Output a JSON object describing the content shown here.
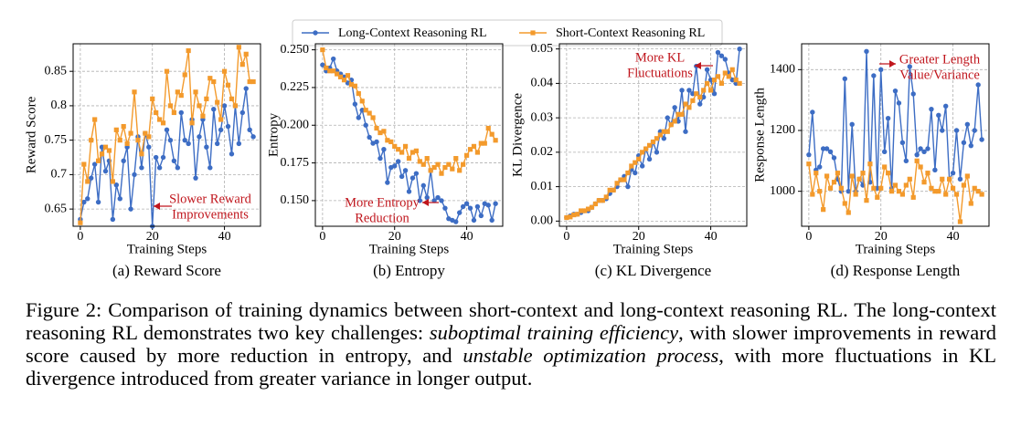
{
  "chart_data": [
    {
      "type": "line",
      "title": "(a) Reward Score",
      "xlabel": "Training Steps",
      "ylabel": "Reward Score",
      "x": [
        0,
        1,
        2,
        3,
        4,
        5,
        6,
        7,
        8,
        9,
        10,
        11,
        12,
        13,
        14,
        15,
        16,
        17,
        18,
        19,
        20,
        21,
        22,
        23,
        24,
        25,
        26,
        27,
        28,
        29,
        30,
        31,
        32,
        33,
        34,
        35,
        36,
        37,
        38,
        39,
        40,
        41,
        42,
        43,
        44,
        45,
        46,
        47,
        48
      ],
      "xlim": [
        -2,
        50
      ],
      "xticks": [
        0,
        20,
        40
      ],
      "ylim": [
        0.625,
        0.89
      ],
      "yticks": [
        0.65,
        0.7,
        0.75,
        0.8,
        0.85
      ],
      "grid": true,
      "annotation": [
        "Slower Reward",
        "Improvements"
      ],
      "series": [
        {
          "name": "Long-Context Reasoning RL",
          "color": "#3d6dc4",
          "marker": "circle",
          "values": [
            0.635,
            0.66,
            0.665,
            0.695,
            0.715,
            0.66,
            0.74,
            0.705,
            0.72,
            0.635,
            0.685,
            0.665,
            0.72,
            0.74,
            0.65,
            0.7,
            0.755,
            0.71,
            0.76,
            0.74,
            0.625,
            0.725,
            0.71,
            0.725,
            0.765,
            0.75,
            0.72,
            0.71,
            0.79,
            0.75,
            0.745,
            0.78,
            0.695,
            0.755,
            0.78,
            0.74,
            0.71,
            0.795,
            0.745,
            0.765,
            0.8,
            0.77,
            0.73,
            0.8,
            0.745,
            0.79,
            0.825,
            0.765,
            0.755
          ]
        },
        {
          "name": "Short-Context Reasoning RL",
          "color": "#f39a2c",
          "marker": "square",
          "values": [
            0.63,
            0.715,
            0.69,
            0.75,
            0.78,
            0.72,
            0.73,
            0.74,
            0.735,
            0.69,
            0.765,
            0.75,
            0.77,
            0.745,
            0.76,
            0.82,
            0.75,
            0.73,
            0.76,
            0.755,
            0.81,
            0.79,
            0.78,
            0.775,
            0.85,
            0.8,
            0.79,
            0.82,
            0.815,
            0.845,
            0.88,
            0.775,
            0.82,
            0.8,
            0.785,
            0.81,
            0.84,
            0.835,
            0.805,
            0.78,
            0.85,
            0.83,
            0.81,
            0.8,
            0.885,
            0.86,
            0.875,
            0.835,
            0.835
          ]
        }
      ]
    },
    {
      "type": "line",
      "title": "(b) Entropy",
      "xlabel": "Training Steps",
      "ylabel": "Entropy",
      "x": [
        0,
        1,
        2,
        3,
        4,
        5,
        6,
        7,
        8,
        9,
        10,
        11,
        12,
        13,
        14,
        15,
        16,
        17,
        18,
        19,
        20,
        21,
        22,
        23,
        24,
        25,
        26,
        27,
        28,
        29,
        30,
        31,
        32,
        33,
        34,
        35,
        36,
        37,
        38,
        39,
        40,
        41,
        42,
        43,
        44,
        45,
        46,
        47,
        48
      ],
      "xlim": [
        -2,
        50
      ],
      "xticks": [
        0,
        20,
        40
      ],
      "ylim": [
        0.133,
        0.254
      ],
      "yticks": [
        {
          "value": 0.15,
          "label": "0.150"
        },
        {
          "value": 0.175,
          "label": "0.175"
        },
        {
          "value": 0.2,
          "label": "0.200"
        },
        {
          "value": 0.225,
          "label": "0.225"
        },
        {
          "value": 0.25,
          "label": "0.250"
        }
      ],
      "grid": true,
      "annotation": [
        "More Entropy",
        "Reduction"
      ],
      "series": [
        {
          "color": "#3d6dc4",
          "marker": "circle",
          "values": [
            0.24,
            0.236,
            0.238,
            0.244,
            0.236,
            0.234,
            0.232,
            0.228,
            0.23,
            0.214,
            0.205,
            0.21,
            0.2,
            0.192,
            0.188,
            0.189,
            0.178,
            0.184,
            0.162,
            0.172,
            0.173,
            0.176,
            0.166,
            0.17,
            0.156,
            0.165,
            0.168,
            0.15,
            0.16,
            0.152,
            0.17,
            0.15,
            0.152,
            0.15,
            0.145,
            0.138,
            0.137,
            0.136,
            0.142,
            0.146,
            0.148,
            0.145,
            0.137,
            0.146,
            0.14,
            0.148,
            0.147,
            0.137,
            0.148
          ]
        },
        {
          "color": "#f39a2c",
          "marker": "square",
          "values": [
            0.25,
            0.238,
            0.236,
            0.236,
            0.234,
            0.232,
            0.23,
            0.233,
            0.227,
            0.226,
            0.221,
            0.216,
            0.21,
            0.208,
            0.205,
            0.198,
            0.195,
            0.196,
            0.19,
            0.189,
            0.186,
            0.184,
            0.182,
            0.186,
            0.178,
            0.182,
            0.183,
            0.176,
            0.174,
            0.178,
            0.17,
            0.172,
            0.174,
            0.168,
            0.172,
            0.174,
            0.171,
            0.178,
            0.17,
            0.174,
            0.18,
            0.184,
            0.186,
            0.182,
            0.188,
            0.188,
            0.198,
            0.194,
            0.19
          ]
        }
      ]
    },
    {
      "type": "line",
      "title": "(c) KL Divergence",
      "xlabel": "Training Steps",
      "ylabel": "KL Divergence",
      "x": [
        0,
        1,
        2,
        3,
        4,
        5,
        6,
        7,
        8,
        9,
        10,
        11,
        12,
        13,
        14,
        15,
        16,
        17,
        18,
        19,
        20,
        21,
        22,
        23,
        24,
        25,
        26,
        27,
        28,
        29,
        30,
        31,
        32,
        33,
        34,
        35,
        36,
        37,
        38,
        39,
        40,
        41,
        42,
        43,
        44,
        45,
        46,
        47,
        48
      ],
      "xlim": [
        -2,
        50
      ],
      "xticks": [
        0,
        20,
        40
      ],
      "ylim": [
        -0.0015,
        0.0515
      ],
      "yticks": [
        {
          "value": 0,
          "label": "0.00"
        },
        {
          "value": 0.01,
          "label": "0.01"
        },
        {
          "value": 0.02,
          "label": "0.02"
        },
        {
          "value": 0.03,
          "label": "0.03"
        },
        {
          "value": 0.04,
          "label": "0.04"
        },
        {
          "value": 0.05,
          "label": "0.05"
        }
      ],
      "grid": true,
      "annotation": [
        "More KL",
        "Fluctuations"
      ],
      "series": [
        {
          "color": "#3d6dc4",
          "marker": "circle",
          "values": [
            0.001,
            0.0015,
            0.002,
            0.002,
            0.0025,
            0.003,
            0.003,
            0.004,
            0.005,
            0.006,
            0.006,
            0.0065,
            0.008,
            0.009,
            0.01,
            0.012,
            0.013,
            0.01,
            0.015,
            0.014,
            0.019,
            0.016,
            0.021,
            0.018,
            0.023,
            0.02,
            0.026,
            0.024,
            0.03,
            0.028,
            0.033,
            0.029,
            0.038,
            0.026,
            0.038,
            0.037,
            0.045,
            0.034,
            0.036,
            0.044,
            0.041,
            0.037,
            0.049,
            0.048,
            0.047,
            0.043,
            0.041,
            0.04,
            0.05
          ]
        },
        {
          "color": "#f39a2c",
          "marker": "square",
          "values": [
            0.001,
            0.0012,
            0.0018,
            0.002,
            0.003,
            0.003,
            0.0035,
            0.004,
            0.005,
            0.006,
            0.006,
            0.007,
            0.009,
            0.009,
            0.011,
            0.012,
            0.012,
            0.014,
            0.016,
            0.017,
            0.018,
            0.02,
            0.021,
            0.022,
            0.023,
            0.024,
            0.025,
            0.026,
            0.026,
            0.028,
            0.029,
            0.031,
            0.031,
            0.034,
            0.033,
            0.035,
            0.037,
            0.036,
            0.038,
            0.04,
            0.038,
            0.041,
            0.042,
            0.04,
            0.043,
            0.042,
            0.044,
            0.041,
            0.04
          ]
        }
      ]
    },
    {
      "type": "line",
      "title": "(d) Response Length",
      "xlabel": "Training Steps",
      "ylabel": "Response Length",
      "x": [
        0,
        1,
        2,
        3,
        4,
        5,
        6,
        7,
        8,
        9,
        10,
        11,
        12,
        13,
        14,
        15,
        16,
        17,
        18,
        19,
        20,
        21,
        22,
        23,
        24,
        25,
        26,
        27,
        28,
        29,
        30,
        31,
        32,
        33,
        34,
        35,
        36,
        37,
        38,
        39,
        40,
        41,
        42,
        43,
        44,
        45,
        46,
        47,
        48
      ],
      "xlim": [
        -2,
        50
      ],
      "xticks": [
        0,
        20,
        40
      ],
      "ylim": [
        885,
        1485
      ],
      "yticks": [
        1000,
        1200,
        1400
      ],
      "grid": true,
      "annotation": [
        "Greater Length",
        "Value/Variance"
      ],
      "series": [
        {
          "color": "#3d6dc4",
          "marker": "circle",
          "values": [
            1120,
            1260,
            1070,
            1080,
            1140,
            1140,
            1130,
            1110,
            1040,
            1000,
            1370,
            1000,
            1220,
            1000,
            1040,
            1020,
            1460,
            1030,
            1380,
            1010,
            1400,
            1130,
            1240,
            1010,
            1330,
            1290,
            1160,
            1100,
            1410,
            1320,
            1120,
            1140,
            1130,
            1140,
            1270,
            1070,
            1250,
            1200,
            1280,
            1040,
            1060,
            1200,
            1040,
            1160,
            1220,
            1150,
            1200,
            1350,
            1170
          ]
        },
        {
          "color": "#f39a2c",
          "marker": "square",
          "values": [
            1090,
            990,
            1060,
            1000,
            940,
            1050,
            1010,
            1030,
            1060,
            1010,
            960,
            930,
            1050,
            990,
            1040,
            1060,
            970,
            1090,
            1010,
            980,
            1010,
            1080,
            1060,
            1000,
            1020,
            1000,
            990,
            1020,
            1040,
            980,
            1100,
            1080,
            1030,
            1060,
            1010,
            1000,
            1000,
            1040,
            990,
            1040,
            1010,
            990,
            900,
            1020,
            1050,
            960,
            1010,
            1000,
            990
          ]
        }
      ]
    }
  ],
  "caption": [
    {
      "text": "Figure 2: Comparison of training dynamics between short-context and long-context reasoning RL. The long-context reasoning RL demonstrates two key challenges: ",
      "italic": false
    },
    {
      "text": "suboptimal training efficiency",
      "italic": true
    },
    {
      "text": ", with slower improvements in reward score caused by more reduction in entropy, and ",
      "italic": false
    },
    {
      "text": "unstable optimization process",
      "italic": true
    },
    {
      "text": ", with more fluctuations in KL divergence introduced from greater variance in longer output.",
      "italic": false
    }
  ]
}
